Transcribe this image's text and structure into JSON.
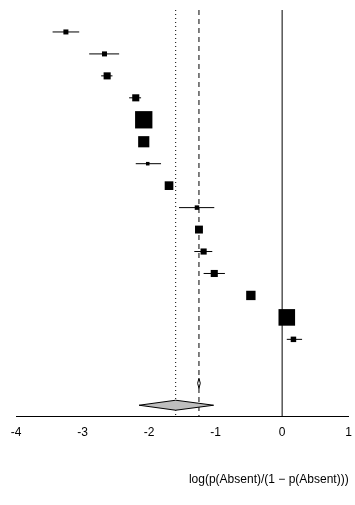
{
  "chart_data": {
    "type": "forest",
    "xlabel": "log(p(Absent)/(1 − p(Absent)))",
    "xlim": [
      -4,
      1
    ],
    "xticks": [
      -4,
      -3,
      -2,
      -1,
      0,
      1
    ],
    "grid": false,
    "color": "#000000",
    "series": [
      {
        "marker": "square",
        "values": [
          -3.25,
          -2.67,
          -2.63,
          -2.2,
          -2.08,
          -2.08,
          -2.02,
          -1.7,
          -1.28,
          -1.25,
          -1.18,
          -1.02,
          -0.47,
          0.07,
          0.17
        ],
        "lower": [
          -3.45,
          -2.9,
          -2.72,
          -2.3,
          -2.12,
          -2.11,
          -2.2,
          -1.76,
          -1.55,
          -1.3,
          -1.32,
          -1.18,
          -0.52,
          0.02,
          0.07
        ],
        "upper": [
          -3.05,
          -2.45,
          -2.55,
          -2.12,
          -2.04,
          -2.05,
          -1.82,
          -1.64,
          -1.02,
          -1.2,
          -1.05,
          -0.86,
          -0.42,
          0.12,
          0.3
        ],
        "weights": [
          1,
          1,
          2,
          2,
          12,
          5,
          0.5,
          3,
          0.8,
          2.5,
          1.5,
          2,
          3.5,
          11,
          1.2
        ]
      }
    ],
    "summaries": [
      {
        "value": -1.25,
        "lower": -1.27,
        "upper": -1.23,
        "color": "#ffffff",
        "marker": "diamond"
      },
      {
        "value": -1.6,
        "lower": -2.15,
        "upper": -1.03,
        "color": "#bebebe",
        "marker": "diamond"
      }
    ],
    "reference_lines": [
      {
        "value": 0,
        "line_style": "solid"
      },
      {
        "value": -1.25,
        "line_style": "dashed"
      },
      {
        "value": -1.6,
        "line_style": "dotted"
      }
    ]
  }
}
